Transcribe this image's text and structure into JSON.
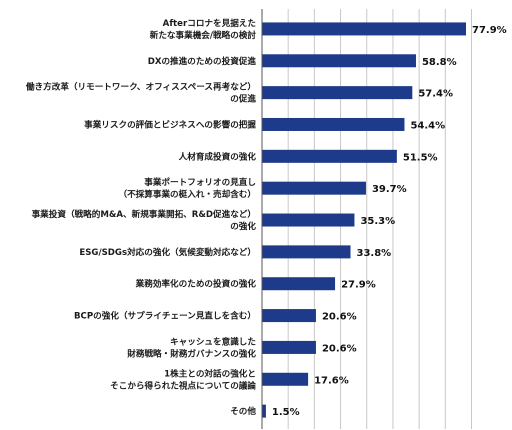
{
  "chart_data": {
    "type": "bar",
    "orientation": "horizontal",
    "title": "",
    "xlabel": "",
    "ylabel": "",
    "xlim": [
      0,
      80
    ],
    "grid": true,
    "legend": "none",
    "bar_color": "#1e3a8a",
    "value_suffix": "%",
    "categories": [
      [
        "Afterコロナを見据えた",
        "新たな事業機会/戦略の検討"
      ],
      [
        "DXの推進のための投資促進"
      ],
      [
        "働き方改革（リモートワーク、オフィススペース再考など）",
        "の促進"
      ],
      [
        "事業リスクの評価とビジネスへの影響の把握"
      ],
      [
        "人材育成投資の強化"
      ],
      [
        "事業ポートフォリオの見直し",
        "（不採算事業の梃入れ・売却含む）"
      ],
      [
        "事業投資（戦略的M&A、新規事業開拓、R&D促進など）",
        "の強化"
      ],
      [
        "ESG/SDGs対応の強化（気候変動対応など）"
      ],
      [
        "業務効率化のための投資の強化"
      ],
      [
        "BCPの強化（サプライチェーン見直しを含む）"
      ],
      [
        "キャッシュを意識した",
        "財務戦略・財務ガバナンスの強化"
      ],
      [
        "1株主との対話の強化と",
        "そこから得られた視点についての議論"
      ],
      [
        "その他"
      ]
    ],
    "values": [
      77.9,
      58.8,
      57.4,
      54.4,
      51.5,
      39.7,
      35.3,
      33.8,
      27.9,
      20.6,
      20.6,
      17.6,
      1.5
    ],
    "value_labels": [
      "77.9%",
      "58.8%",
      "57.4%",
      "54.4%",
      "51.5%",
      "39.7%",
      "35.3%",
      "33.8%",
      "27.9%",
      "20.6%",
      "20.6%",
      "17.6%",
      "1.5%"
    ]
  }
}
